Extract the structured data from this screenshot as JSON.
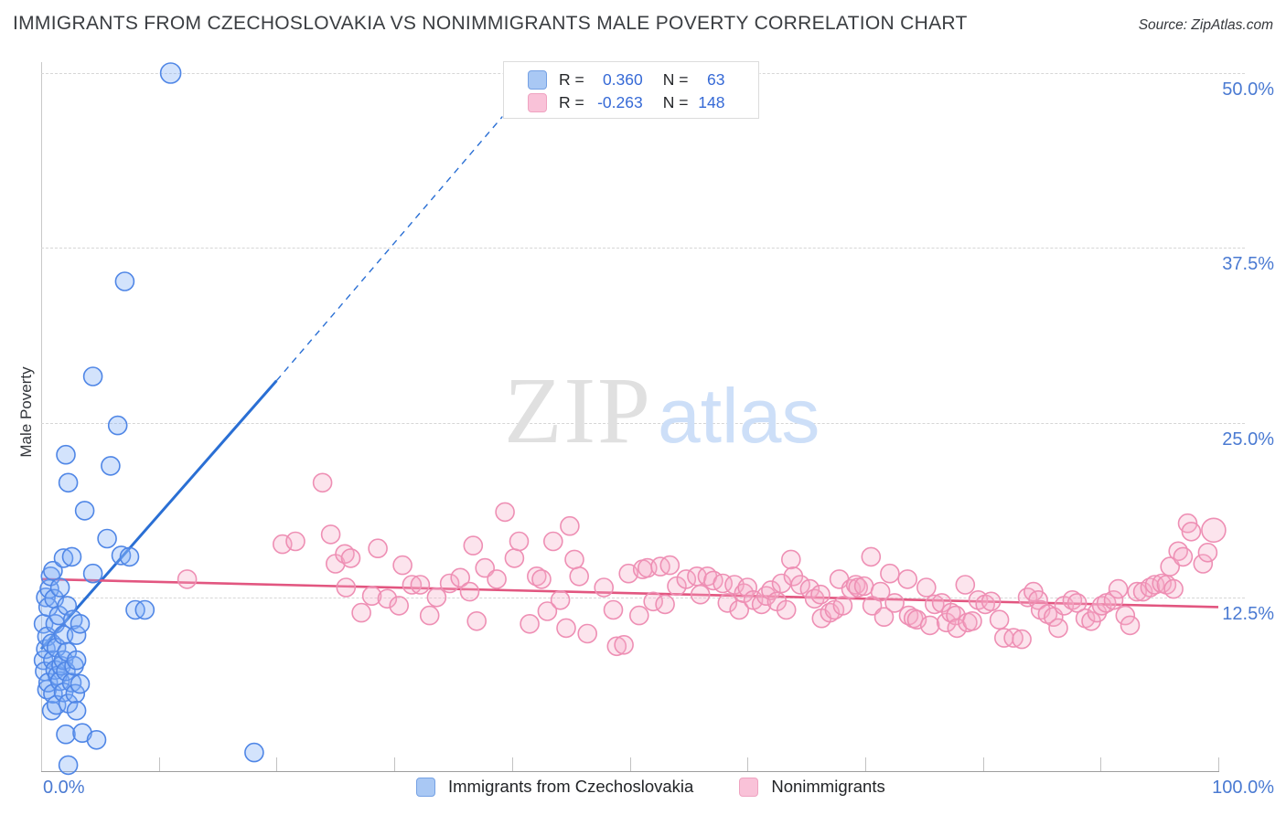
{
  "header": {
    "title": "IMMIGRANTS FROM CZECHOSLOVAKIA VS NONIMMIGRANTS MALE POVERTY CORRELATION CHART",
    "source": "Source: ZipAtlas.com"
  },
  "watermark": {
    "zip": "ZIP",
    "atlas": "atlas"
  },
  "axes": {
    "y_title": "Male Poverty",
    "y_ticks": [
      {
        "label": "50.0%",
        "value": 50
      },
      {
        "label": "37.5%",
        "value": 37.5
      },
      {
        "label": "25.0%",
        "value": 25
      },
      {
        "label": "12.5%",
        "value": 12.5
      }
    ],
    "x_tick_values": [
      10,
      20,
      30,
      40,
      50,
      60,
      70,
      80,
      90,
      100
    ],
    "x_left_label": "0.0%",
    "x_right_label": "100.0%"
  },
  "legend_box": {
    "rows": [
      {
        "series": "immigrants",
        "r_label": "R =",
        "r_value": "0.360",
        "n_label": "N =",
        "n_value": "63"
      },
      {
        "series": "nonimmigrants",
        "r_label": "R =",
        "r_value": "-0.263",
        "n_label": "N =",
        "n_value": "148"
      }
    ]
  },
  "bottom_legend": [
    {
      "label": "Immigrants from Czechoslovakia",
      "swatch": "blue"
    },
    {
      "label": "Nonimmigrants",
      "swatch": "pink"
    }
  ],
  "colors": {
    "blue_point_stroke": "#4f86e6",
    "blue_point_fill": "rgba(130,175,245,0.35)",
    "pink_point_stroke": "#ee8fb4",
    "pink_point_fill": "rgba(247,170,200,0.32)",
    "blue_trend": "#2a6fd4",
    "pink_trend": "#e25680",
    "axis_label_blue": "#4a7ad2"
  },
  "chart_data": {
    "type": "scatter",
    "xlabel": "",
    "ylabel": "Male Poverty",
    "xlim": [
      0,
      100
    ],
    "ylim": [
      0,
      50.6
    ],
    "grid": "dashed horizontal at 12.5, 25, 37.5, 50",
    "legend_position": "top-center box with R/N stats; series legend bottom-center",
    "series": [
      {
        "name": "Immigrants from Czechoslovakia",
        "r": 0.36,
        "n": 63,
        "points": [
          [
            0.2,
            10.6
          ],
          [
            0.2,
            8.0
          ],
          [
            0.3,
            7.2
          ],
          [
            0.4,
            8.8
          ],
          [
            0.4,
            12.5
          ],
          [
            0.5,
            9.7
          ],
          [
            0.5,
            5.9
          ],
          [
            0.6,
            11.8
          ],
          [
            0.6,
            6.4
          ],
          [
            0.7,
            13.1
          ],
          [
            0.8,
            14.0
          ],
          [
            0.9,
            4.4
          ],
          [
            0.9,
            9.2
          ],
          [
            1.0,
            8.0
          ],
          [
            1.0,
            5.6
          ],
          [
            1.0,
            14.4
          ],
          [
            1.1,
            12.4
          ],
          [
            1.2,
            10.6
          ],
          [
            1.2,
            7.3
          ],
          [
            1.3,
            8.9
          ],
          [
            1.3,
            4.8
          ],
          [
            1.4,
            6.9
          ],
          [
            1.5,
            11.2
          ],
          [
            1.6,
            13.2
          ],
          [
            1.6,
            6.5
          ],
          [
            1.7,
            7.6
          ],
          [
            1.9,
            15.3
          ],
          [
            1.9,
            9.8
          ],
          [
            1.9,
            8.0
          ],
          [
            1.9,
            5.7
          ],
          [
            2.1,
            22.7
          ],
          [
            2.1,
            7.2
          ],
          [
            2.1,
            2.7
          ],
          [
            2.2,
            11.9
          ],
          [
            2.2,
            8.6
          ],
          [
            2.3,
            20.7
          ],
          [
            2.3,
            4.9
          ],
          [
            2.3,
            0.5
          ],
          [
            2.6,
            15.4
          ],
          [
            2.6,
            6.4
          ],
          [
            2.7,
            10.9
          ],
          [
            2.8,
            7.6
          ],
          [
            2.9,
            5.6
          ],
          [
            3.0,
            9.8
          ],
          [
            3.0,
            8.0
          ],
          [
            3.0,
            4.4
          ],
          [
            3.3,
            10.6
          ],
          [
            3.3,
            6.3
          ],
          [
            3.5,
            2.8
          ],
          [
            3.7,
            18.7
          ],
          [
            4.4,
            28.3
          ],
          [
            4.4,
            14.2
          ],
          [
            4.7,
            2.3
          ],
          [
            5.6,
            16.7
          ],
          [
            5.9,
            21.9
          ],
          [
            6.5,
            24.8
          ],
          [
            6.8,
            15.5
          ],
          [
            7.1,
            35.1
          ],
          [
            7.5,
            15.4
          ],
          [
            8.0,
            11.6
          ],
          [
            8.8,
            11.6
          ],
          [
            11.0,
            50.0,
            11
          ],
          [
            18.1,
            1.4
          ]
        ]
      },
      {
        "name": "Nonimmigrants",
        "r": -0.263,
        "n": 148,
        "points": [
          [
            12.4,
            13.8
          ],
          [
            20.5,
            16.3
          ],
          [
            21.6,
            16.5
          ],
          [
            23.9,
            20.7
          ],
          [
            24.6,
            17.0
          ],
          [
            25.0,
            14.9
          ],
          [
            25.8,
            15.6
          ],
          [
            25.9,
            13.2
          ],
          [
            26.3,
            15.3
          ],
          [
            27.2,
            11.4
          ],
          [
            28.1,
            12.6
          ],
          [
            28.6,
            16.0
          ],
          [
            29.4,
            12.4
          ],
          [
            30.4,
            11.9
          ],
          [
            30.7,
            14.8
          ],
          [
            31.5,
            13.4
          ],
          [
            32.2,
            13.4
          ],
          [
            33.0,
            11.2
          ],
          [
            33.6,
            12.5
          ],
          [
            34.7,
            13.5
          ],
          [
            35.6,
            13.9
          ],
          [
            36.4,
            12.9
          ],
          [
            36.7,
            16.2
          ],
          [
            37.0,
            10.8
          ],
          [
            37.7,
            14.6
          ],
          [
            38.7,
            13.8
          ],
          [
            39.4,
            18.6
          ],
          [
            40.2,
            15.3
          ],
          [
            40.6,
            16.5
          ],
          [
            41.5,
            10.6
          ],
          [
            42.1,
            14.0
          ],
          [
            42.5,
            13.8
          ],
          [
            43.0,
            11.5
          ],
          [
            43.5,
            16.5
          ],
          [
            44.1,
            12.3
          ],
          [
            44.6,
            10.3
          ],
          [
            44.9,
            17.6
          ],
          [
            45.3,
            15.2
          ],
          [
            45.7,
            14.0
          ],
          [
            46.4,
            9.9
          ],
          [
            47.8,
            13.2
          ],
          [
            48.6,
            11.6
          ],
          [
            48.9,
            9.0
          ],
          [
            49.5,
            9.1
          ],
          [
            49.9,
            14.2
          ],
          [
            50.8,
            11.2
          ],
          [
            51.1,
            14.5
          ],
          [
            51.5,
            14.6
          ],
          [
            52.0,
            12.2
          ],
          [
            52.6,
            14.7
          ],
          [
            53.0,
            12.0
          ],
          [
            53.4,
            14.8
          ],
          [
            54.0,
            13.3
          ],
          [
            54.8,
            13.8
          ],
          [
            55.7,
            14.0
          ],
          [
            56.0,
            12.7
          ],
          [
            56.6,
            14.0
          ],
          [
            57.1,
            13.7
          ],
          [
            57.9,
            13.5
          ],
          [
            58.3,
            12.1
          ],
          [
            58.9,
            13.4
          ],
          [
            59.3,
            11.6
          ],
          [
            59.7,
            12.8
          ],
          [
            60.0,
            13.2
          ],
          [
            60.5,
            12.3
          ],
          [
            61.2,
            12.0
          ],
          [
            61.6,
            12.6
          ],
          [
            62.0,
            13.0
          ],
          [
            62.5,
            12.2
          ],
          [
            62.9,
            13.5
          ],
          [
            63.3,
            11.6
          ],
          [
            63.7,
            15.2
          ],
          [
            63.9,
            14.0
          ],
          [
            64.5,
            13.4
          ],
          [
            65.3,
            13.1
          ],
          [
            65.7,
            12.4
          ],
          [
            66.2,
            12.7
          ],
          [
            66.3,
            11.0
          ],
          [
            67.0,
            11.4
          ],
          [
            67.4,
            11.6
          ],
          [
            67.8,
            13.8
          ],
          [
            68.1,
            11.9
          ],
          [
            68.8,
            13.1
          ],
          [
            69.2,
            13.4
          ],
          [
            69.4,
            13.2
          ],
          [
            69.9,
            13.3
          ],
          [
            70.5,
            15.4
          ],
          [
            70.6,
            11.9
          ],
          [
            71.3,
            12.9
          ],
          [
            71.6,
            11.1
          ],
          [
            72.1,
            14.2
          ],
          [
            72.5,
            12.1
          ],
          [
            73.6,
            13.8
          ],
          [
            73.7,
            11.2
          ],
          [
            74.1,
            11.0
          ],
          [
            74.4,
            10.9
          ],
          [
            75.2,
            13.2
          ],
          [
            75.5,
            10.5
          ],
          [
            75.9,
            12.0
          ],
          [
            76.5,
            12.1
          ],
          [
            76.9,
            10.7
          ],
          [
            77.3,
            11.4
          ],
          [
            77.7,
            11.2
          ],
          [
            77.8,
            10.3
          ],
          [
            78.5,
            13.4
          ],
          [
            78.7,
            10.7
          ],
          [
            79.1,
            10.8
          ],
          [
            79.6,
            12.3
          ],
          [
            80.2,
            12.0
          ],
          [
            80.7,
            12.2
          ],
          [
            81.4,
            10.9
          ],
          [
            81.8,
            9.6
          ],
          [
            82.6,
            9.6
          ],
          [
            83.3,
            9.5
          ],
          [
            83.8,
            12.5
          ],
          [
            84.3,
            12.9
          ],
          [
            84.7,
            12.3
          ],
          [
            84.9,
            11.6
          ],
          [
            85.5,
            11.3
          ],
          [
            86.0,
            11.1
          ],
          [
            86.4,
            10.3
          ],
          [
            86.9,
            11.9
          ],
          [
            87.6,
            12.3
          ],
          [
            88.0,
            12.1
          ],
          [
            88.7,
            11.0
          ],
          [
            89.2,
            10.8
          ],
          [
            89.7,
            11.4
          ],
          [
            90.1,
            11.9
          ],
          [
            90.5,
            12.1
          ],
          [
            91.1,
            12.3
          ],
          [
            91.5,
            13.1
          ],
          [
            92.1,
            11.2
          ],
          [
            92.5,
            10.5
          ],
          [
            93.1,
            12.9
          ],
          [
            93.6,
            12.9
          ],
          [
            94.2,
            13.2
          ],
          [
            94.6,
            13.4
          ],
          [
            95.2,
            13.5
          ],
          [
            95.6,
            13.4
          ],
          [
            95.9,
            14.7
          ],
          [
            96.2,
            13.1
          ],
          [
            96.6,
            15.8
          ],
          [
            97.0,
            15.4
          ],
          [
            97.4,
            17.8
          ],
          [
            97.7,
            17.2
          ],
          [
            98.7,
            14.9
          ],
          [
            99.1,
            15.7
          ],
          [
            99.6,
            17.3,
            13
          ]
        ]
      }
    ],
    "trendlines": [
      {
        "series": "Immigrants from Czechoslovakia",
        "from": [
          0,
          8.8
        ],
        "to": [
          20,
          28.0
        ],
        "dashed_extension_to": [
          39.2,
          46.9
        ],
        "color_key": "blue_trend"
      },
      {
        "series": "Nonimmigrants",
        "from": [
          0,
          13.8
        ],
        "to": [
          100,
          11.8
        ],
        "color_key": "pink_trend"
      }
    ]
  }
}
